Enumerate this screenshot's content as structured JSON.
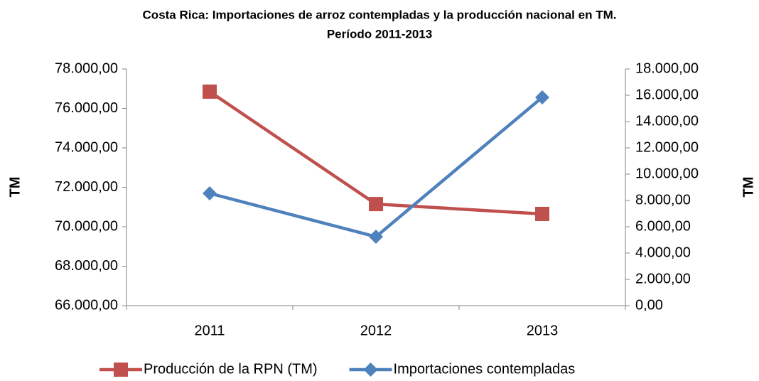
{
  "chart_data": {
    "type": "line",
    "title": "Costa Rica: Importaciones de arroz contempladas y la producción nacional en TM.",
    "subtitle": "Período 2011-2013",
    "y_label": "TM",
    "y2_label": "TM",
    "categories": [
      "2011",
      "2012",
      "2013"
    ],
    "series": [
      {
        "name": "Producción de la RPN (TM)",
        "color": "#c0504d",
        "marker": "square",
        "values": [
          76850,
          71150,
          70650
        ]
      },
      {
        "name": "Importaciones contempladas",
        "color": "#4f81bd",
        "marker": "diamond",
        "axis": "y2",
        "values": [
          8540,
          5240,
          15840
        ]
      }
    ],
    "ylim": [
      66000,
      78000
    ],
    "yticks": [
      {
        "value": 66000,
        "label": "66.000,00"
      },
      {
        "value": 68000,
        "label": "68.000,00"
      },
      {
        "value": 70000,
        "label": "70.000,00"
      },
      {
        "value": 72000,
        "label": "72.000,00"
      },
      {
        "value": 74000,
        "label": "74.000,00"
      },
      {
        "value": 76000,
        "label": "76.000,00"
      },
      {
        "value": 78000,
        "label": "78.000,00"
      }
    ],
    "y2lim": [
      0,
      18000
    ],
    "y2ticks": [
      {
        "value": 0,
        "label": "0,00"
      },
      {
        "value": 2000,
        "label": "2.000,00"
      },
      {
        "value": 4000,
        "label": "4.000,00"
      },
      {
        "value": 6000,
        "label": "6.000,00"
      },
      {
        "value": 8000,
        "label": "8.000,00"
      },
      {
        "value": 10000,
        "label": "10.000,00"
      },
      {
        "value": 12000,
        "label": "12.000,00"
      },
      {
        "value": 14000,
        "label": "14.000,00"
      },
      {
        "value": 16000,
        "label": "16.000,00"
      },
      {
        "value": 18000,
        "label": "18.000,00"
      }
    ],
    "grid": false,
    "legend": "bottom"
  }
}
